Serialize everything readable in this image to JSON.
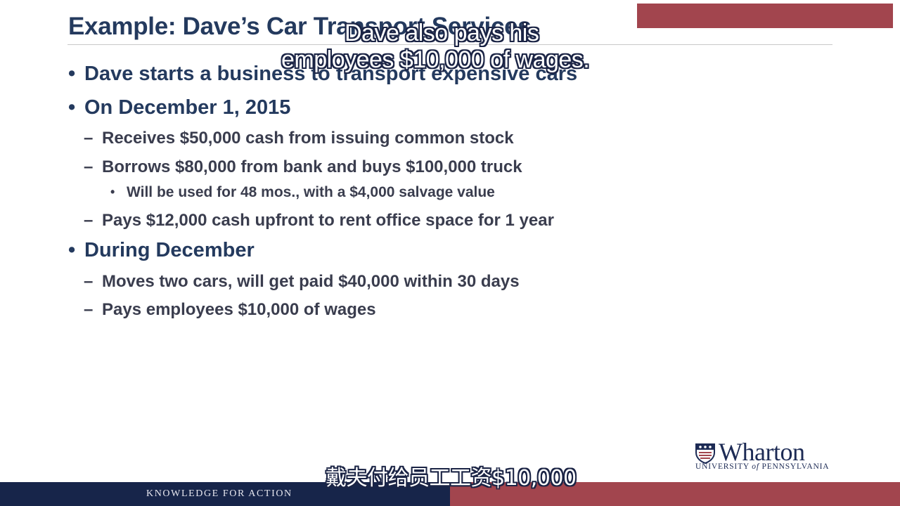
{
  "slide": {
    "title": "Example: Dave’s Car Transport Services",
    "bullets": [
      {
        "level": 1,
        "text": "Dave starts a business to transport expensive cars"
      },
      {
        "level": 1,
        "text": "On December 1, 2015"
      },
      {
        "level": 2,
        "text": "Receives $50,000 cash from issuing common stock"
      },
      {
        "level": 2,
        "text": "Borrows $80,000 from bank and buys $100,000 truck"
      },
      {
        "level": 3,
        "text": "Will be used for 48 mos., with a $4,000 salvage value"
      },
      {
        "level": 2,
        "text": "Pays $12,000 cash upfront to rent office space for 1 year"
      },
      {
        "level": 1,
        "text": "During December"
      },
      {
        "level": 2,
        "text": "Moves two cars, will get paid $40,000 within 30 days"
      },
      {
        "level": 2,
        "text": "Pays employees $10,000 of wages"
      }
    ],
    "markers": {
      "level1": "•",
      "level2": "–",
      "level3": "•"
    }
  },
  "subtitles": {
    "english_line1": "Dave also pays his",
    "english_line2": "employees $10,000 of wages.",
    "chinese": "戴夫付给员工工资$10,000"
  },
  "footer": {
    "tagline": "KNOWLEDGE FOR ACTION"
  },
  "logo": {
    "name": "Wharton",
    "university_pre": "UNIVERSITY",
    "university_of": "of",
    "university_post": "PENNSYLVANIA"
  },
  "colors": {
    "navy": "#17254a",
    "crimson": "#a2454e",
    "title": "#243a5e"
  }
}
